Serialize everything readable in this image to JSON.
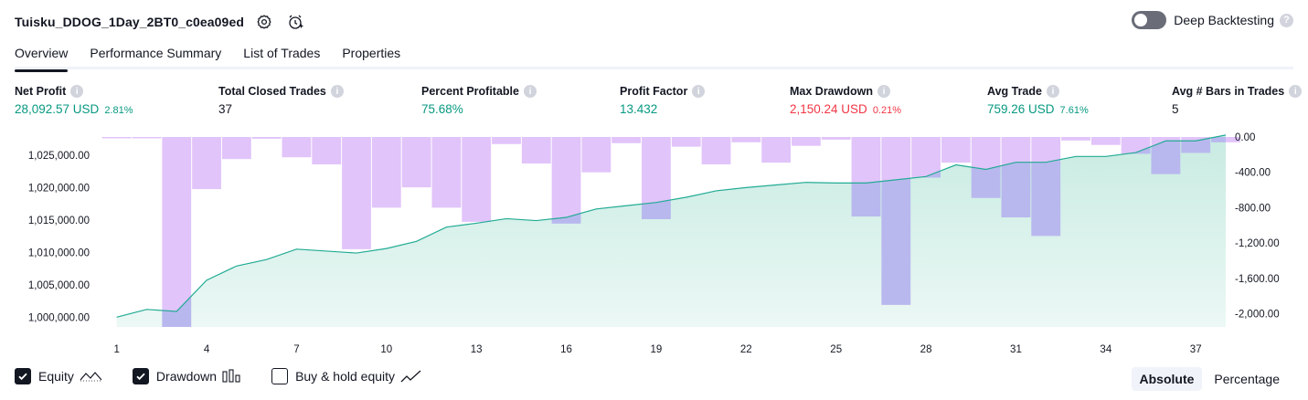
{
  "header": {
    "title": "Tuisku_DDOG_1Day_2BT0_c0ea09ed",
    "deep_backtesting_label": "Deep Backtesting",
    "deep_backtesting_on": false,
    "help_glyph": "?"
  },
  "tabs": [
    {
      "label": "Overview",
      "active": true
    },
    {
      "label": "Performance Summary",
      "active": false
    },
    {
      "label": "List of Trades",
      "active": false
    },
    {
      "label": "Properties",
      "active": false
    }
  ],
  "metrics": [
    {
      "label": "Net Profit",
      "value": "28,092.57 USD",
      "pct": "2.81%",
      "tone": "pos"
    },
    {
      "label": "Total Closed Trades",
      "value": "37",
      "pct": "",
      "tone": "neutral"
    },
    {
      "label": "Percent Profitable",
      "value": "75.68%",
      "pct": "",
      "tone": "pos"
    },
    {
      "label": "Profit Factor",
      "value": "13.432",
      "pct": "",
      "tone": "pos"
    },
    {
      "label": "Max Drawdown",
      "value": "2,150.24 USD",
      "pct": "0.21%",
      "tone": "neg"
    },
    {
      "label": "Avg Trade",
      "value": "759.26 USD",
      "pct": "7.61%",
      "tone": "pos"
    },
    {
      "label": "Avg # Bars in Trades",
      "value": "5",
      "pct": "",
      "tone": "neutral"
    }
  ],
  "info_glyph": "i",
  "chart_data": {
    "type": "area",
    "x": [
      1,
      2,
      3,
      4,
      5,
      6,
      7,
      8,
      9,
      10,
      11,
      12,
      13,
      14,
      15,
      16,
      17,
      18,
      19,
      20,
      21,
      22,
      23,
      24,
      25,
      26,
      27,
      28,
      29,
      30,
      31,
      32,
      33,
      34,
      35,
      36,
      37,
      38
    ],
    "x_ticks": [
      "1",
      "4",
      "7",
      "10",
      "13",
      "16",
      "19",
      "22",
      "25",
      "28",
      "31",
      "34",
      "37"
    ],
    "xlim": [
      0.4,
      38
    ],
    "equity": {
      "ylim": [
        998500,
        1027800
      ],
      "y_ticks": [
        "1,000,000.00",
        "1,005,000.00",
        "1,010,000.00",
        "1,015,000.00",
        "1,020,000.00",
        "1,025,000.00"
      ],
      "y_tick_values": [
        1000000,
        1005000,
        1010000,
        1015000,
        1020000,
        1025000
      ],
      "values": [
        1000000,
        1001200,
        1000900,
        1005700,
        1007900,
        1008900,
        1010500,
        1010200,
        1009900,
        1010600,
        1011700,
        1013900,
        1014500,
        1015200,
        1014900,
        1015400,
        1016700,
        1017200,
        1017700,
        1018500,
        1019500,
        1020000,
        1020400,
        1020800,
        1020700,
        1020700,
        1021200,
        1021700,
        1023500,
        1022800,
        1023900,
        1023900,
        1024800,
        1024800,
        1025400,
        1027200,
        1027200,
        1028100
      ],
      "line_color": "#22ab94",
      "fill_color": "#c8ebe2"
    },
    "drawdown": {
      "ylim": [
        -2150,
        0
      ],
      "y_ticks": [
        "0.00",
        "-400.00",
        "-800.00",
        "-1,200.00",
        "-1,600.00",
        "-2,000.00"
      ],
      "y_tick_values": [
        0,
        -400,
        -800,
        -1200,
        -1600,
        -2000
      ],
      "values": [
        -10,
        -10,
        -2150,
        -590,
        -250,
        -20,
        -230,
        -310,
        -1270,
        -800,
        -570,
        -800,
        -960,
        -80,
        -300,
        -980,
        -400,
        -70,
        -930,
        -110,
        -310,
        -60,
        -290,
        -100,
        -30,
        -900,
        -1900,
        -460,
        -290,
        -690,
        -910,
        -1120,
        -40,
        -90,
        -190,
        -420,
        -180,
        -60
      ],
      "bar_color": "#e1c4fa",
      "overlap_color": "#b8b8ee"
    }
  },
  "legend": [
    {
      "label": "Equity",
      "checked": true,
      "icon": "equity-line-icon"
    },
    {
      "label": "Drawdown",
      "checked": true,
      "icon": "drawdown-bars-icon"
    },
    {
      "label": "Buy & hold equity",
      "checked": false,
      "icon": "buy-hold-line-icon"
    }
  ],
  "mode": {
    "absolute_label": "Absolute",
    "percentage_label": "Percentage",
    "selected": "absolute"
  }
}
